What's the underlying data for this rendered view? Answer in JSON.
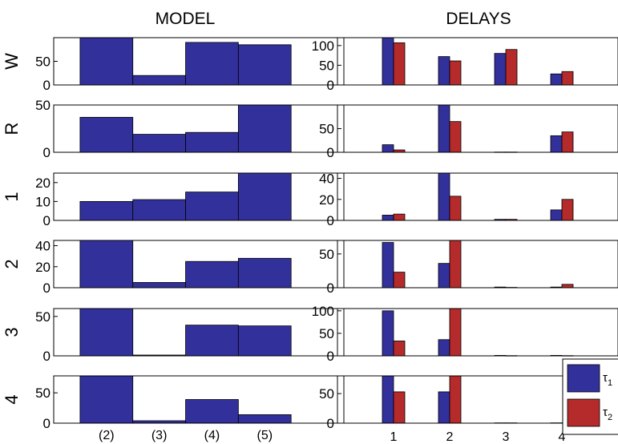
{
  "columns": {
    "left_title": "MODEL",
    "right_title": "DELAYS"
  },
  "colors": {
    "tau1": "#32309a",
    "tau2": "#b52a2a"
  },
  "legend": {
    "tau1_label": "τ",
    "tau1_sub": "1",
    "tau2_label": "τ",
    "tau2_sub": "2"
  },
  "chart_data": [
    {
      "type": "bar",
      "panel": "MODEL",
      "row_label": "W",
      "categories": [
        "(2)",
        "(3)",
        "(4)",
        "(5)"
      ],
      "values": [
        100,
        20,
        90,
        85
      ],
      "ylim": [
        0,
        100
      ],
      "yticks": [
        0,
        50
      ]
    },
    {
      "type": "bar",
      "panel": "MODEL",
      "row_label": "R",
      "categories": [
        "(2)",
        "(3)",
        "(4)",
        "(5)"
      ],
      "values": [
        37,
        19,
        21,
        50
      ],
      "ylim": [
        0,
        50
      ],
      "yticks": [
        0,
        50
      ]
    },
    {
      "type": "bar",
      "panel": "MODEL",
      "row_label": "1",
      "categories": [
        "(2)",
        "(3)",
        "(4)",
        "(5)"
      ],
      "values": [
        10,
        11,
        15,
        25
      ],
      "ylim": [
        0,
        25
      ],
      "yticks": [
        0,
        10,
        20
      ]
    },
    {
      "type": "bar",
      "panel": "MODEL",
      "row_label": "2",
      "categories": [
        "(2)",
        "(3)",
        "(4)",
        "(5)"
      ],
      "values": [
        45,
        5,
        25,
        28
      ],
      "ylim": [
        0,
        45
      ],
      "yticks": [
        0,
        20,
        40
      ]
    },
    {
      "type": "bar",
      "panel": "MODEL",
      "row_label": "3",
      "categories": [
        "(2)",
        "(3)",
        "(4)",
        "(5)"
      ],
      "values": [
        60,
        1,
        39,
        38
      ],
      "ylim": [
        0,
        60
      ],
      "yticks": [
        0,
        50
      ]
    },
    {
      "type": "bar",
      "panel": "MODEL",
      "row_label": "4",
      "categories": [
        "(2)",
        "(3)",
        "(4)",
        "(5)"
      ],
      "values": [
        78,
        4,
        39,
        14
      ],
      "ylim": [
        0,
        78
      ],
      "yticks": [
        0,
        50
      ]
    },
    {
      "type": "bar",
      "panel": "DELAYS",
      "row_label": "W",
      "categories": [
        "1",
        "2",
        "3",
        "4"
      ],
      "series": [
        {
          "name": "τ1",
          "values": [
            120,
            72,
            80,
            28
          ]
        },
        {
          "name": "τ2",
          "values": [
            107,
            61,
            90,
            34
          ]
        }
      ],
      "ylim": [
        0,
        120
      ],
      "yticks": [
        0,
        50,
        100
      ]
    },
    {
      "type": "bar",
      "panel": "DELAYS",
      "row_label": "R",
      "categories": [
        "1",
        "2",
        "3",
        "4"
      ],
      "series": [
        {
          "name": "τ1",
          "values": [
            16,
            100,
            0.5,
            35
          ]
        },
        {
          "name": "τ2",
          "values": [
            5,
            65,
            0.5,
            43
          ]
        }
      ],
      "ylim": [
        0,
        100
      ],
      "yticks": [
        0,
        50
      ]
    },
    {
      "type": "bar",
      "panel": "DELAYS",
      "row_label": "1",
      "categories": [
        "1",
        "2",
        "3",
        "4"
      ],
      "series": [
        {
          "name": "τ1",
          "values": [
            5,
            45,
            1,
            10
          ]
        },
        {
          "name": "τ2",
          "values": [
            6,
            23,
            1,
            20
          ]
        }
      ],
      "ylim": [
        0,
        45
      ],
      "yticks": [
        0,
        20,
        40
      ]
    },
    {
      "type": "bar",
      "panel": "DELAYS",
      "row_label": "2",
      "categories": [
        "1",
        "2",
        "3",
        "4"
      ],
      "series": [
        {
          "name": "τ1",
          "values": [
            67,
            36,
            1,
            1
          ]
        },
        {
          "name": "τ2",
          "values": [
            23,
            70,
            0.5,
            5
          ]
        }
      ],
      "ylim": [
        0,
        70
      ],
      "yticks": [
        0,
        50
      ]
    },
    {
      "type": "bar",
      "panel": "DELAYS",
      "row_label": "3",
      "categories": [
        "1",
        "2",
        "3",
        "4"
      ],
      "series": [
        {
          "name": "τ1",
          "values": [
            100,
            36,
            1,
            1
          ]
        },
        {
          "name": "τ2",
          "values": [
            33,
            105,
            0.5,
            0.5
          ]
        }
      ],
      "ylim": [
        0,
        105
      ],
      "yticks": [
        0,
        50,
        100
      ]
    },
    {
      "type": "bar",
      "panel": "DELAYS",
      "row_label": "4",
      "categories": [
        "1",
        "2",
        "3",
        "4"
      ],
      "series": [
        {
          "name": "τ1",
          "values": [
            80,
            53,
            0.5,
            0.5
          ]
        },
        {
          "name": "τ2",
          "values": [
            53,
            80,
            0.5,
            0.5
          ]
        }
      ],
      "ylim": [
        0,
        80
      ],
      "yticks": [
        0,
        50
      ],
      "legend": "right"
    }
  ]
}
